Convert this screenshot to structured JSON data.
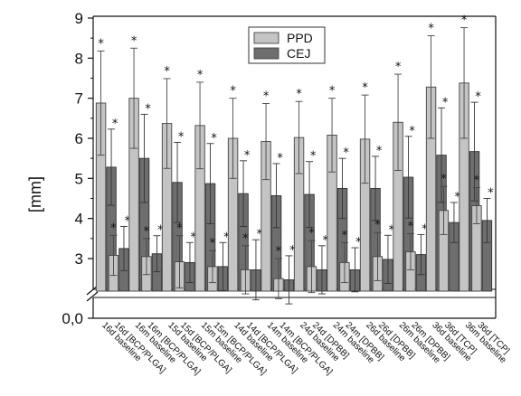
{
  "chart_data": {
    "type": "bar",
    "ylabel": "[mm]",
    "ylim": [
      2.2,
      9
    ],
    "y_ticks": [
      3,
      4,
      5,
      6,
      7,
      8,
      9
    ],
    "y_break_label": "0,0",
    "y_break_tick": "0,0",
    "categories": [
      "16d baseline",
      "16d [BCP/PLGA]",
      "16m baseline",
      "16m [BCP/PLGA]",
      "15d baseline",
      "15d [BCP/PLGA]",
      "15m baseline",
      "15m [BCP/PLGA]",
      "14d baseline",
      "14d [BCP/PLGA]",
      "14m baseline",
      "14m [BCP/PLGA]",
      "24d baseline",
      "24d [DPBB]",
      "24m baseline",
      "24m [DPBB]",
      "26d baseline",
      "26d [DPBB]",
      "26m baseline",
      "26m [DPBB]",
      "36d baseline",
      "36d [TCP]",
      "36m baseline",
      "36d [TCP]"
    ],
    "series": [
      {
        "name": "PPD",
        "color": "#c4c4c4",
        "values": [
          6.88,
          3.08,
          7.0,
          3.05,
          6.37,
          2.92,
          6.32,
          2.8,
          6.0,
          2.72,
          5.92,
          2.5,
          6.02,
          2.8,
          6.08,
          2.9,
          5.98,
          3.05,
          6.4,
          3.17,
          7.28,
          4.2,
          7.38,
          4.32
        ],
        "errors": [
          1.3,
          0.5,
          1.25,
          0.45,
          1.12,
          0.65,
          1.08,
          0.4,
          1.0,
          0.6,
          0.95,
          0.5,
          0.9,
          0.65,
          0.92,
          0.5,
          1.1,
          0.6,
          1.2,
          0.45,
          1.28,
          0.6,
          1.38,
          0.45
        ]
      },
      {
        "name": "CEJ",
        "color": "#6e6e6e",
        "values": [
          5.28,
          3.25,
          5.5,
          3.12,
          4.9,
          2.9,
          4.87,
          2.8,
          4.62,
          2.72,
          4.57,
          2.47,
          4.6,
          2.72,
          4.75,
          2.72,
          4.75,
          2.98,
          5.03,
          3.1,
          5.58,
          3.9,
          5.67,
          3.95
        ],
        "errors": [
          0.95,
          0.55,
          1.1,
          0.45,
          1.0,
          0.5,
          1.0,
          0.6,
          0.82,
          0.75,
          0.8,
          0.6,
          0.82,
          0.6,
          0.75,
          0.55,
          0.8,
          0.6,
          1.02,
          0.5,
          1.18,
          0.5,
          1.23,
          0.55
        ]
      }
    ],
    "annotations": {
      "marker": "*",
      "note": "* above each bar"
    },
    "legend": {
      "position": "top-center",
      "entries": [
        "PPD",
        "CEJ"
      ]
    },
    "grid": false
  }
}
